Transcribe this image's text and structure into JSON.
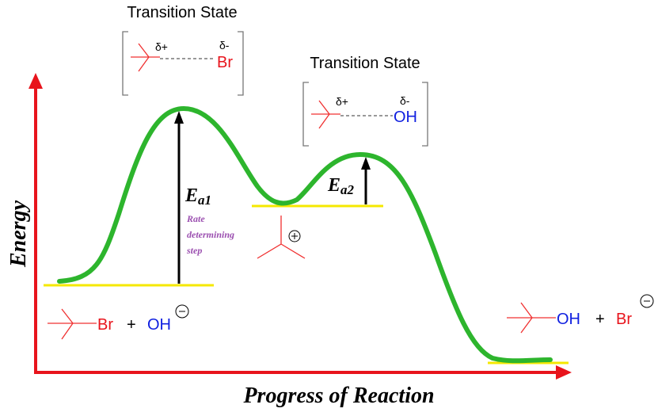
{
  "axes": {
    "y_label": "Energy",
    "x_label": "Progress of Reaction"
  },
  "transition_states": [
    {
      "title": "Transition State",
      "partial_positive": "δ+",
      "partial_negative": "δ-",
      "group": "Br"
    },
    {
      "title": "Transition State",
      "partial_positive": "δ+",
      "partial_negative": "δ-",
      "group": "OH"
    }
  ],
  "activation_energies": [
    {
      "symbol": "E",
      "subscript": "a1",
      "note": [
        "Rate",
        "determining",
        "step"
      ]
    },
    {
      "symbol": "E",
      "subscript": "a2"
    }
  ],
  "reactants": {
    "leaving_group": "Br",
    "plus": "+",
    "nucleophile": "OH"
  },
  "products": {
    "group": "OH",
    "plus": "+",
    "ion": "Br"
  }
}
